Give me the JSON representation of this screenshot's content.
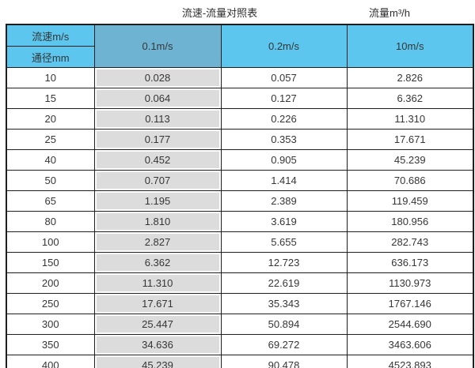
{
  "titles": {
    "main": "流速-流量对照表",
    "unit": "流量m³/h"
  },
  "header": {
    "velocity_label": "流速m/s",
    "diameter_label": "通径mm",
    "columns": [
      "0.1m/s",
      "0.2m/s",
      "10m/s"
    ]
  },
  "colors": {
    "header_blue": "#5cc6ee",
    "highlight_blue": "#6fb3d3",
    "gray_cell": "#dcdcdc",
    "border": "#1f1f1f"
  },
  "table": {
    "rows": [
      [
        "10",
        "0.028",
        "0.057",
        "2.826"
      ],
      [
        "15",
        "0.064",
        "0.127",
        "6.362"
      ],
      [
        "20",
        "0.113",
        "0.226",
        "11.310"
      ],
      [
        "25",
        "0.177",
        "0.353",
        "17.671"
      ],
      [
        "40",
        "0.452",
        "0.905",
        "45.239"
      ],
      [
        "50",
        "0.707",
        "1.414",
        "70.686"
      ],
      [
        "65",
        "1.195",
        "2.389",
        "119.459"
      ],
      [
        "80",
        "1.810",
        "3.619",
        "180.956"
      ],
      [
        "100",
        "2.827",
        "5.655",
        "282.743"
      ],
      [
        "150",
        "6.362",
        "12.723",
        "636.173"
      ],
      [
        "200",
        "11.310",
        "22.619",
        "1130.973"
      ],
      [
        "250",
        "17.671",
        "35.343",
        "1767.146"
      ],
      [
        "300",
        "25.447",
        "50.894",
        "2544.690"
      ],
      [
        "350",
        "34.636",
        "69.272",
        "3463.606"
      ],
      [
        "400",
        "45.239",
        "90.478",
        "4523.893"
      ]
    ]
  },
  "chart_data": {
    "type": "table",
    "title": "流速-流量对照表",
    "unit_label": "流量m³/h",
    "row_header": "通径mm",
    "col_header": "流速m/s",
    "columns": [
      "0.1m/s",
      "0.2m/s",
      "10m/s"
    ],
    "diameters_mm": [
      10,
      15,
      20,
      25,
      40,
      50,
      65,
      80,
      100,
      150,
      200,
      250,
      300,
      350,
      400
    ],
    "series": [
      {
        "name": "0.1m/s",
        "values": [
          0.028,
          0.064,
          0.113,
          0.177,
          0.452,
          0.707,
          1.195,
          1.81,
          2.827,
          6.362,
          11.31,
          17.671,
          25.447,
          34.636,
          45.239
        ]
      },
      {
        "name": "0.2m/s",
        "values": [
          0.057,
          0.127,
          0.226,
          0.353,
          0.905,
          1.414,
          2.389,
          3.619,
          5.655,
          12.723,
          22.619,
          35.343,
          50.894,
          69.272,
          90.478
        ]
      },
      {
        "name": "10m/s",
        "values": [
          2.826,
          6.362,
          11.31,
          17.671,
          45.239,
          70.686,
          119.459,
          180.956,
          282.743,
          636.173,
          1130.973,
          1767.146,
          2544.69,
          3463.606,
          4523.893
        ]
      }
    ]
  }
}
